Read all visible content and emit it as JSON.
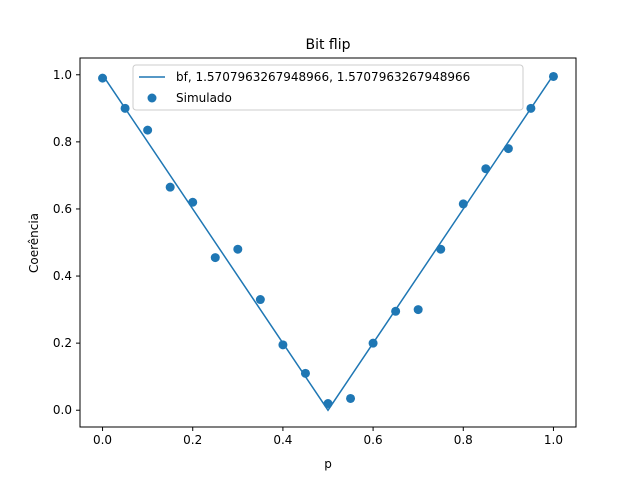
{
  "chart_data": {
    "type": "line",
    "title": "Bit flip",
    "xlabel": "p",
    "ylabel": "Coerência",
    "xlim": [
      -0.05,
      1.05
    ],
    "ylim": [
      -0.05,
      1.05
    ],
    "xticks": [
      0.0,
      0.2,
      0.4,
      0.6,
      0.8,
      1.0
    ],
    "xtick_labels": [
      "0.0",
      "0.2",
      "0.4",
      "0.6",
      "0.8",
      "1.0"
    ],
    "yticks": [
      0.0,
      0.2,
      0.4,
      0.6,
      0.8,
      1.0
    ],
    "ytick_labels": [
      "0.0",
      "0.2",
      "0.4",
      "0.6",
      "0.8",
      "1.0"
    ],
    "grid": false,
    "legend_position": "top-center",
    "series": [
      {
        "name": "bf, 1.5707963267948966, 1.5707963267948966",
        "kind": "line",
        "color": "#1f77b4",
        "x": [
          0.0,
          0.5,
          1.0
        ],
        "y": [
          1.0,
          0.0,
          1.0
        ]
      },
      {
        "name": "Simulado",
        "kind": "scatter",
        "color": "#1f77b4",
        "x": [
          0.0,
          0.05,
          0.1,
          0.15,
          0.2,
          0.25,
          0.3,
          0.35,
          0.4,
          0.45,
          0.5,
          0.55,
          0.6,
          0.65,
          0.7,
          0.75,
          0.8,
          0.85,
          0.9,
          0.95,
          1.0
        ],
        "y": [
          0.99,
          0.9,
          0.835,
          0.665,
          0.62,
          0.455,
          0.48,
          0.33,
          0.195,
          0.11,
          0.02,
          0.035,
          0.2,
          0.295,
          0.3,
          0.48,
          0.615,
          0.72,
          0.78,
          0.9,
          0.995
        ]
      }
    ]
  }
}
